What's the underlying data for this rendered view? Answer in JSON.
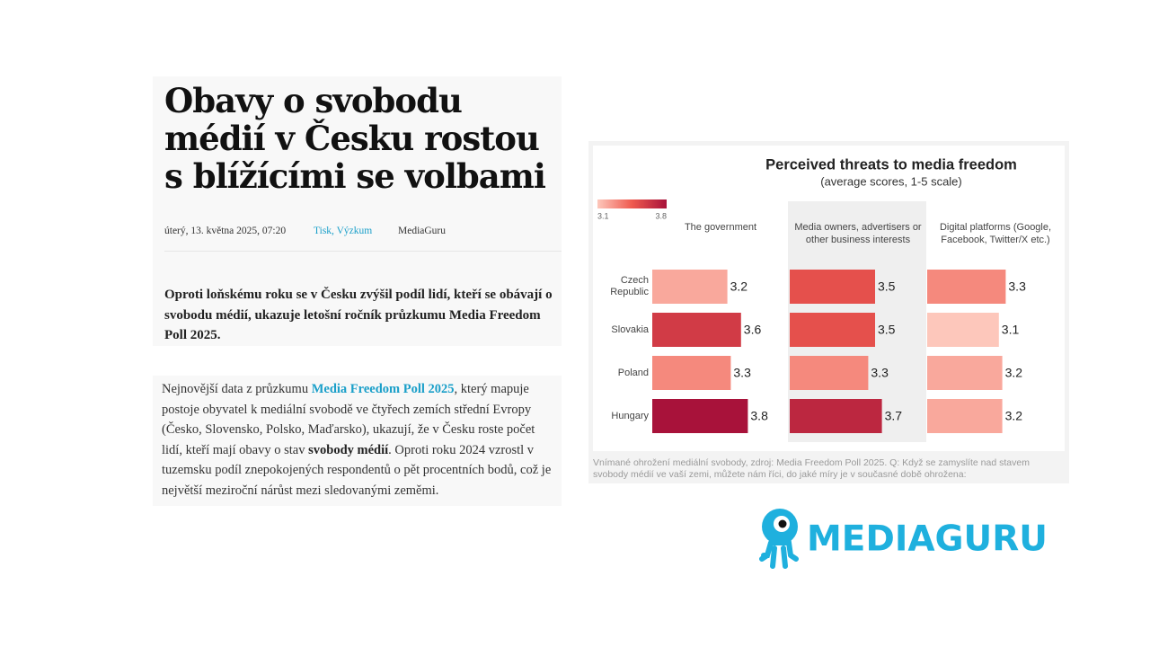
{
  "article": {
    "title": "Obavy o svobodu médií v Česku rostou s blížícími se volbami",
    "date": "úterý, 13. května 2025, 07:20",
    "tags": "Tisk, Výzkum",
    "author": "MediaGuru",
    "lead": "Oproti loňskému roku se v Česku zvýšil podíl lidí, kteří se obávají o svobodu médií, ukazuje letošní ročník průzkumu Media Freedom Poll 2025.",
    "body": [
      {
        "text": "Nejnovější data z průzkumu ",
        "style": "plain"
      },
      {
        "text": "Media Freedom Poll 2025",
        "style": "link"
      },
      {
        "text": ", který mapuje postoje obyvatel k mediální svobodě ve čtyřech zemích střední Evropy (Česko, Slovensko, Polsko, Maďarsko), ukazují, že v Česku roste počet lidí, kteří mají obavy o stav ",
        "style": "plain"
      },
      {
        "text": "svobody médií",
        "style": "bold"
      },
      {
        "text": ". Oproti roku 2024 vzrostl v tuzemsku podíl znepokojených respondentů o pět procentních bodů, což je největší meziroční nárůst mezi sledovanými zeměmi.",
        "style": "plain"
      }
    ]
  },
  "chart_data": {
    "type": "bar",
    "orientation": "horizontal",
    "title": "Perceived threats to media freedom",
    "subtitle": "(average scores, 1-5 scale)",
    "categories": [
      "Czech Republic",
      "Slovakia",
      "Poland",
      "Hungary"
    ],
    "series": [
      {
        "name": "The government",
        "values": [
          3.2,
          3.6,
          3.3,
          3.8
        ]
      },
      {
        "name": "Media owners, advertisers or other business interests",
        "values": [
          3.5,
          3.5,
          3.3,
          3.7
        ]
      },
      {
        "name": "Digital platforms (Google, Facebook, Twitter/X etc.)",
        "values": [
          3.3,
          3.1,
          3.2,
          3.2
        ]
      }
    ],
    "xlim": [
      1,
      5
    ],
    "highlight_series": 1,
    "color_scale": {
      "domain": [
        3.1,
        3.8
      ],
      "colors": [
        "#fdc7bb",
        "#ef5a4f",
        "#a8123a"
      ]
    },
    "caption": "Vnímané ohrožení mediální svobody, zdroj: Media Freedom Poll 2025. Q: Když se zamyslíte nad stavem svobody médií ve vaší zemi, můžete nám říci, do jaké míry je v současné době ohrožena:"
  },
  "logo": "MEDIAGURU"
}
